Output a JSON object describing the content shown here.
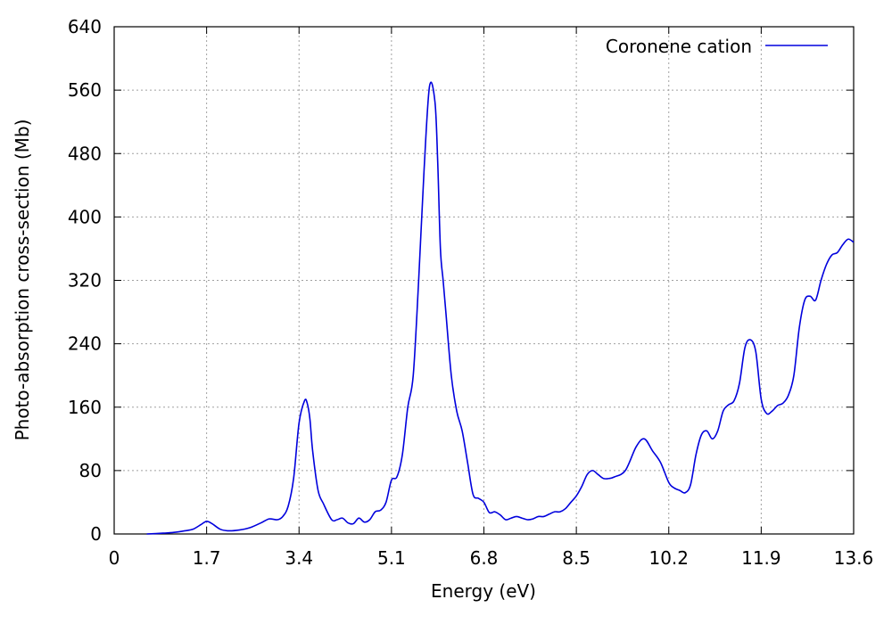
{
  "chart_data": {
    "type": "line",
    "title": "",
    "xlabel": "Energy (eV)",
    "ylabel": "Photo-absorption cross-section (Mb)",
    "xlim": [
      0,
      13.6
    ],
    "ylim": [
      0,
      640
    ],
    "x_ticks": [
      "0",
      "1.7",
      "3.4",
      "5.1",
      "6.8",
      "8.5",
      "10.2",
      "11.9",
      "13.6"
    ],
    "y_ticks": [
      "0",
      "80",
      "160",
      "240",
      "320",
      "400",
      "480",
      "560",
      "640"
    ],
    "grid": true,
    "legend_position": "top-right",
    "series": [
      {
        "name": "Coronene cation",
        "color": "#0000dd",
        "x": [
          0.6,
          0.9,
          1.1,
          1.3,
          1.45,
          1.6,
          1.7,
          1.8,
          1.95,
          2.1,
          2.3,
          2.5,
          2.7,
          2.85,
          3.0,
          3.1,
          3.2,
          3.3,
          3.4,
          3.5,
          3.55,
          3.6,
          3.65,
          3.75,
          3.85,
          4.0,
          4.1,
          4.2,
          4.3,
          4.4,
          4.5,
          4.6,
          4.7,
          4.8,
          4.9,
          5.0,
          5.1,
          5.2,
          5.3,
          5.4,
          5.5,
          5.6,
          5.7,
          5.8,
          5.9,
          5.95,
          6.0,
          6.05,
          6.1,
          6.2,
          6.3,
          6.4,
          6.5,
          6.6,
          6.7,
          6.8,
          6.9,
          7.0,
          7.1,
          7.2,
          7.3,
          7.4,
          7.5,
          7.6,
          7.7,
          7.8,
          7.9,
          8.0,
          8.1,
          8.2,
          8.3,
          8.4,
          8.5,
          8.6,
          8.7,
          8.8,
          8.9,
          9.0,
          9.1,
          9.2,
          9.4,
          9.6,
          9.75,
          9.9,
          10.05,
          10.2,
          10.3,
          10.4,
          10.5,
          10.6,
          10.7,
          10.8,
          10.9,
          11.0,
          11.1,
          11.2,
          11.3,
          11.4,
          11.5,
          11.6,
          11.7,
          11.8,
          11.9,
          12.0,
          12.1,
          12.2,
          12.3,
          12.4,
          12.5,
          12.6,
          12.7,
          12.8,
          12.9,
          13.0,
          13.1,
          13.2,
          13.3,
          13.4,
          13.5,
          13.6
        ],
        "y": [
          0,
          1,
          2,
          4,
          6,
          12,
          16,
          13,
          6,
          4,
          5,
          8,
          14,
          19,
          18,
          22,
          35,
          70,
          140,
          168,
          165,
          145,
          105,
          55,
          38,
          18,
          18,
          20,
          14,
          13,
          20,
          15,
          18,
          28,
          30,
          40,
          68,
          72,
          100,
          160,
          200,
          320,
          460,
          565,
          545,
          470,
          360,
          320,
          280,
          200,
          155,
          130,
          90,
          50,
          45,
          40,
          27,
          28,
          24,
          18,
          20,
          22,
          20,
          18,
          19,
          22,
          22,
          25,
          28,
          28,
          32,
          40,
          48,
          60,
          75,
          80,
          75,
          70,
          70,
          72,
          80,
          110,
          120,
          105,
          90,
          65,
          58,
          55,
          52,
          62,
          100,
          125,
          130,
          120,
          130,
          155,
          163,
          168,
          190,
          235,
          245,
          230,
          170,
          152,
          155,
          162,
          165,
          175,
          200,
          260,
          295,
          300,
          295,
          320,
          340,
          352,
          355,
          365,
          372,
          368
        ]
      }
    ]
  }
}
